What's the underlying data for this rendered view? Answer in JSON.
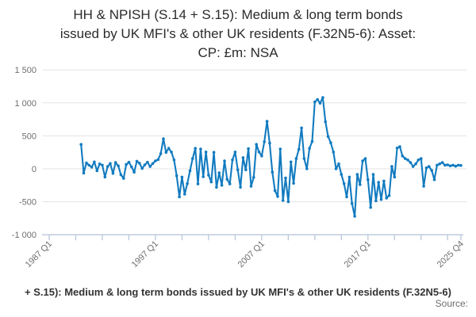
{
  "ui": {
    "title_lines": [
      "HH & NPISH (S.14 + S.15): Medium & long term bonds",
      "issued by UK MFI's & other UK residents (F.32N5-6): Asset:",
      "CP: £m: NSA"
    ],
    "legend_text": "+ S.15): Medium & long term bonds issued by UK MFI's & other UK residents (F.32N5-6)",
    "source_label": "Source:"
  },
  "chart_style": {
    "line_color": "#127bc0",
    "grid_color": "#e3e3e3",
    "axis_color": "#b9c7da",
    "tick_label_color": "#6e6e6e"
  },
  "chart_data": {
    "type": "line",
    "title": "HH & NPISH (S.14 + S.15): Medium & long term bonds issued by UK MFI's & other UK residents (F.32N5-6): Asset: CP: £m: NSA",
    "xlabel": "",
    "ylabel": "£m",
    "grid": true,
    "legend_position": "bottom",
    "ylim": [
      -1000,
      1500
    ],
    "y_ticks": [
      {
        "label": "1 500",
        "value": 1500
      },
      {
        "label": "1 000",
        "value": 1000
      },
      {
        "label": "500",
        "value": 500
      },
      {
        "label": "0",
        "value": 0
      },
      {
        "label": "-500",
        "value": -500
      },
      {
        "label": "-1 000",
        "value": -1000
      }
    ],
    "x_axis": {
      "start": "1987 Q1",
      "end": "2025 Q4",
      "total_quarters": 155,
      "minor_tick_every_quarters": 10,
      "labels": [
        {
          "label": "1987 Q1",
          "quarter_index": 0
        },
        {
          "label": "1997 Q1",
          "quarter_index": 40
        },
        {
          "label": "2007 Q1",
          "quarter_index": 80
        },
        {
          "label": "2017 Q1",
          "quarter_index": 120
        },
        {
          "label": "2025 Q4",
          "quarter_index": 155
        }
      ]
    },
    "series": [
      {
        "name": "HH & NPISH (S.14 + S.15): Medium & long term bonds issued by UK MFI's & other UK residents (F.32N5-6)",
        "frequency": "quarterly",
        "start": "1990 Q1",
        "start_quarter_index": 12,
        "values": [
          370,
          -65,
          90,
          55,
          25,
          105,
          -30,
          75,
          55,
          -125,
          35,
          80,
          -70,
          95,
          45,
          -90,
          -145,
          65,
          100,
          30,
          -50,
          115,
          85,
          5,
          60,
          100,
          35,
          80,
          120,
          140,
          230,
          455,
          250,
          310,
          255,
          135,
          -105,
          -425,
          -125,
          -385,
          -225,
          -30,
          155,
          310,
          -230,
          300,
          -120,
          255,
          -95,
          -200,
          250,
          -280,
          -60,
          -250,
          120,
          -160,
          -230,
          135,
          255,
          -15,
          -280,
          170,
          -15,
          305,
          -265,
          -130,
          370,
          255,
          195,
          410,
          720,
          390,
          -50,
          -330,
          -420,
          300,
          -480,
          -140,
          -500,
          105,
          -220,
          155,
          295,
          620,
          155,
          0,
          310,
          415,
          1015,
          1050,
          995,
          1080,
          715,
          490,
          395,
          255,
          0,
          75,
          -85,
          -225,
          -425,
          -125,
          -525,
          -720,
          -85,
          -240,
          120,
          155,
          -165,
          -585,
          -85,
          -485,
          -205,
          -465,
          -185,
          -445,
          -405,
          35,
          -125,
          315,
          335,
          195,
          155,
          135,
          95,
          35,
          75,
          135,
          155,
          -265,
          15,
          35,
          -25,
          -165,
          55,
          75,
          95,
          55,
          60,
          45,
          55,
          40,
          55,
          50
        ]
      }
    ]
  }
}
